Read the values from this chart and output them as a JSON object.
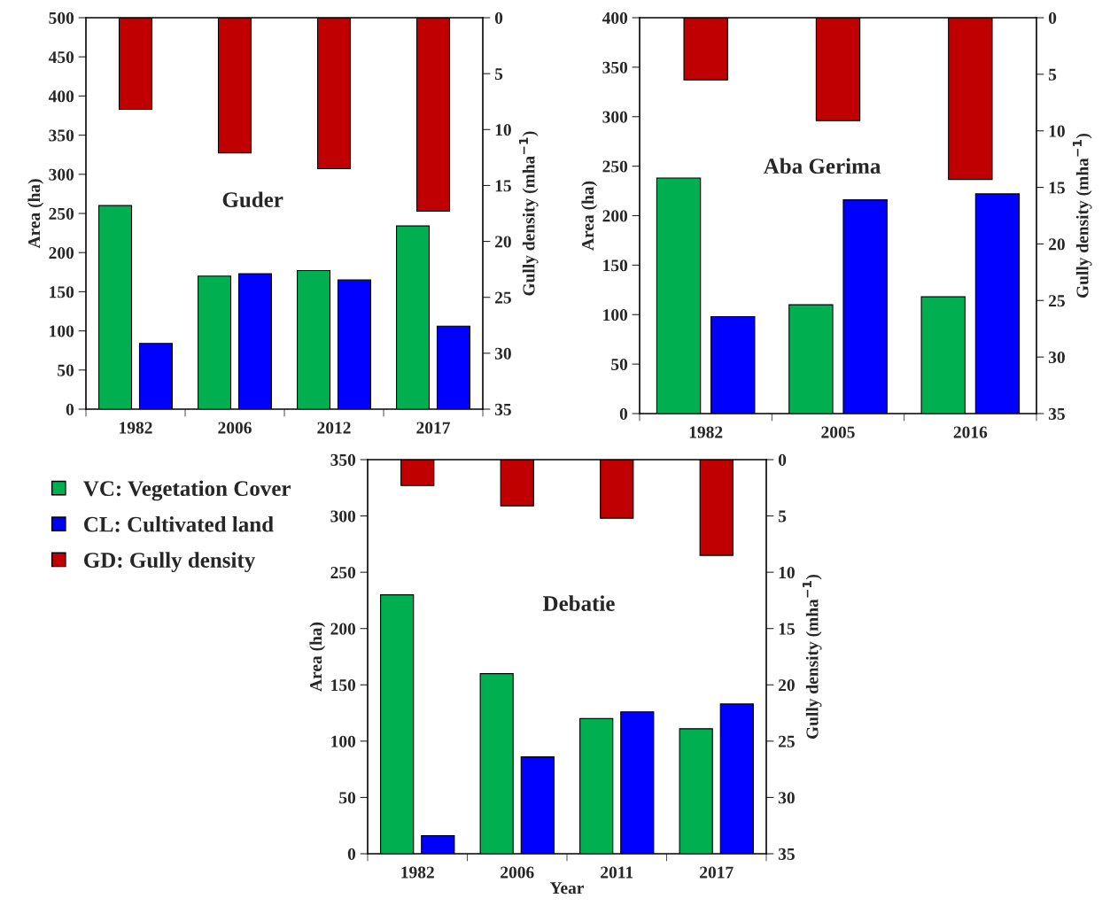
{
  "chart_data": [
    {
      "type": "bar",
      "title": "Guder",
      "ylabel": "Area (ha)",
      "y2label": "Gully density (mha$^{−1}$)",
      "categories": [
        "1982",
        "2006",
        "2012",
        "2017"
      ],
      "ylim": [
        0,
        500
      ],
      "yticks": [
        0,
        50,
        100,
        150,
        200,
        250,
        300,
        350,
        400,
        450,
        500
      ],
      "y2lim": [
        35,
        0
      ],
      "y2ticks": [
        0,
        5,
        10,
        15,
        20,
        25,
        30,
        35
      ],
      "grid": false,
      "legend": false,
      "series": [
        {
          "color": "#00b050",
          "values": [
            260,
            170,
            177,
            234
          ]
        },
        {
          "color": "#0000ff",
          "values": [
            84,
            173,
            165,
            106
          ]
        },
        {
          "color": "#c00000",
          "axis": "y2",
          "values": [
            8.2,
            12.1,
            13.5,
            17.3
          ]
        }
      ]
    },
    {
      "type": "bar",
      "title": "Aba Gerima",
      "ylabel": "Area (ha)",
      "y2label": "Gully density (mha$^{−1}$)",
      "categories": [
        "1982",
        "2005",
        "2016"
      ],
      "ylim": [
        0,
        400
      ],
      "yticks": [
        0,
        50,
        100,
        150,
        200,
        250,
        300,
        350,
        400
      ],
      "y2lim": [
        35,
        0
      ],
      "y2ticks": [
        0,
        5,
        10,
        15,
        20,
        25,
        30,
        35
      ],
      "grid": false,
      "legend": false,
      "series": [
        {
          "color": "#00b050",
          "values": [
            238,
            110,
            118
          ]
        },
        {
          "color": "#0000ff",
          "values": [
            98,
            216,
            222
          ]
        },
        {
          "color": "#c00000",
          "axis": "y2",
          "values": [
            5.5,
            9.1,
            14.3
          ]
        }
      ]
    },
    {
      "type": "bar",
      "title": "Debatie",
      "xlabel": "Year",
      "ylabel": "Area (ha)",
      "y2label": "Gully density (mha$^{−1}$)",
      "categories": [
        "1982",
        "2006",
        "2011",
        "2017"
      ],
      "ylim": [
        0,
        350
      ],
      "yticks": [
        0,
        50,
        100,
        150,
        200,
        250,
        300,
        350
      ],
      "y2lim": [
        35,
        0
      ],
      "y2ticks": [
        0,
        5,
        10,
        15,
        20,
        25,
        30,
        35
      ],
      "grid": false,
      "legend": "left",
      "series": [
        {
          "name": "VC: Vegetation Cover",
          "color": "#00b050",
          "values": [
            230,
            160,
            120,
            111
          ]
        },
        {
          "name": "CL: Cultivated land",
          "color": "#0000ff",
          "values": [
            16,
            86,
            126,
            133
          ]
        },
        {
          "name": "GD: Gully density",
          "color": "#c00000",
          "axis": "y2",
          "values": [
            2.3,
            4.1,
            5.2,
            8.5
          ]
        }
      ]
    }
  ]
}
